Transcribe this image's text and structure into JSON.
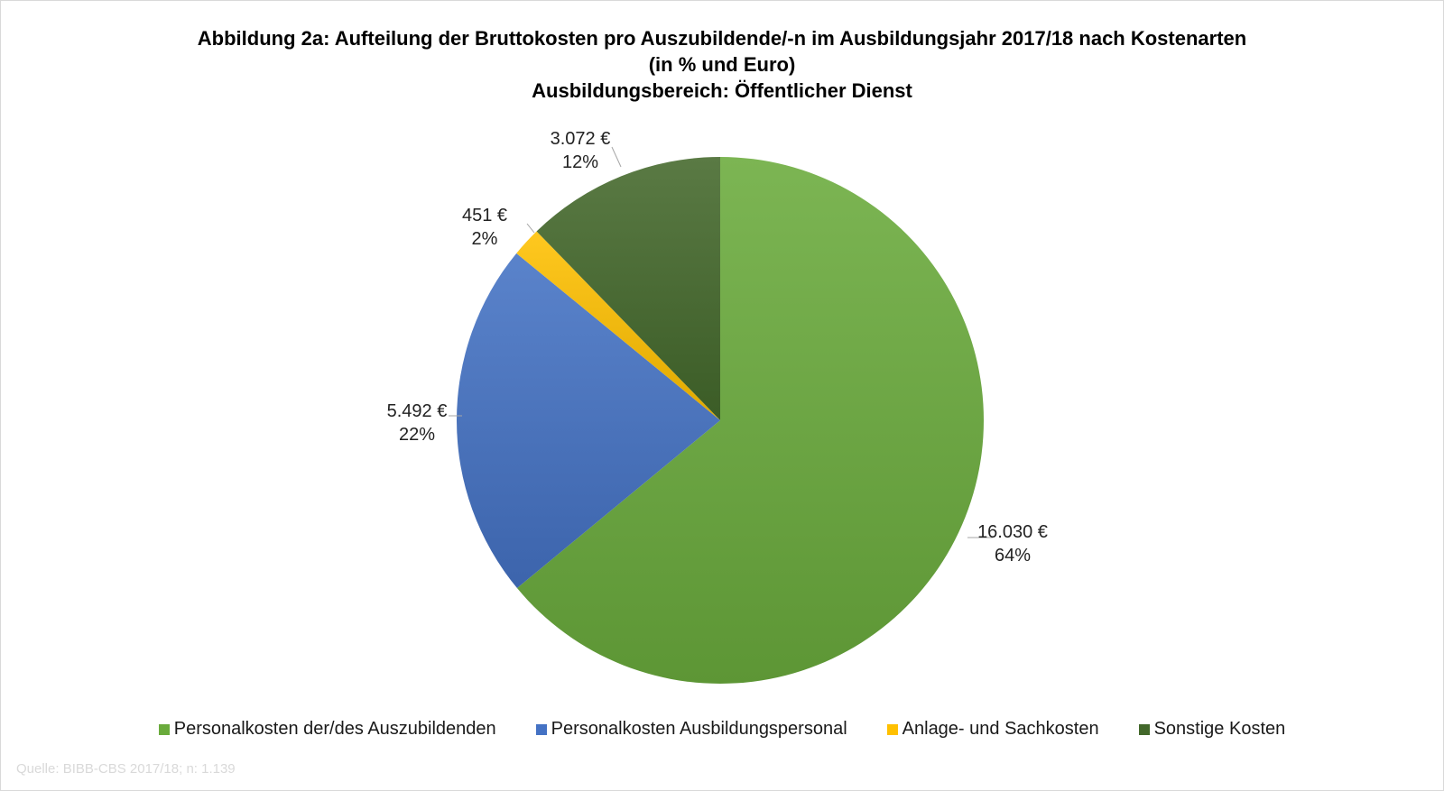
{
  "chart_data": {
    "type": "pie",
    "title": [
      "Abbildung 2a: Aufteilung der Bruttokosten pro Auszubildende/-n im Ausbildungsjahr 2017/18 nach Kostenarten",
      "(in %  und Euro)",
      "Ausbildungsbereich: Öffentlicher Dienst"
    ],
    "slices": [
      {
        "name": "Personalkosten der/des Auszubildenden",
        "value": 16030,
        "value_label": "16.030 €",
        "percent": 64,
        "percent_label": "64%",
        "color": "#6aab3c"
      },
      {
        "name": "Personalkosten Ausbildungspersonal",
        "value": 5492,
        "value_label": "5.492 €",
        "percent": 22,
        "percent_label": "22%",
        "color": "#4472c4"
      },
      {
        "name": "Anlage- und Sachkosten",
        "value": 451,
        "value_label": "451 €",
        "percent": 2,
        "percent_label": "2%",
        "color": "#ffc000"
      },
      {
        "name": "Sonstige Kosten",
        "value": 3072,
        "value_label": "3.072 €",
        "percent": 12,
        "percent_label": "12%",
        "color": "#43682b"
      }
    ],
    "legend_position": "bottom",
    "source": "Quelle:  BIBB-CBS 2017/18; n:  1.139"
  }
}
